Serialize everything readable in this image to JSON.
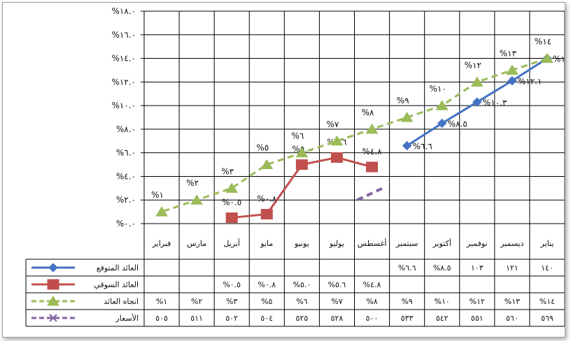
{
  "chart_data": {
    "type": "line",
    "categories": [
      "يناير",
      "ديسمبر",
      "نوفمبر",
      "أكتوبر",
      "سبتمبر",
      "أغسطس",
      "يوليو",
      "يونيو",
      "مايو",
      "أبريل",
      "مارس",
      "فبراير"
    ],
    "category_labels": [
      "يناير",
      "ديسمبر",
      "نوفمبر",
      "أكتوبر",
      "سبتمبر",
      "أغسطس",
      "يوليو",
      "يونيو",
      "مايو",
      "أبريل",
      "مارس",
      "فبراير"
    ],
    "ylim": [
      0,
      18
    ],
    "y_ticks": [
      0,
      2,
      4,
      6,
      8,
      10,
      12,
      14,
      16,
      18
    ],
    "y_tick_labels": [
      "%٠.٠",
      "%٢.٠",
      "%٤.٠",
      "%٦.٠",
      "%٨.٠",
      "%١٠.٠",
      "%١٢.٠",
      "%١٤.٠",
      "%١٦.٠",
      "%١٨.٠"
    ],
    "x_direction": "right-to-left",
    "grid": true,
    "legend_placement": "data-table",
    "series": [
      {
        "name": "العائد المتوقع",
        "color": "#4472c4",
        "marker": "diamond",
        "line": "solid",
        "values": [
          14.0,
          12.1,
          10.3,
          8.5,
          6.6,
          null,
          null,
          null,
          null,
          null,
          null,
          null
        ],
        "labels": [
          "%١٤.٠",
          "%١٢.١",
          "%١٠.٣",
          "%٨.٥",
          "%٦.٦",
          "",
          "",
          "",
          "",
          "",
          "",
          ""
        ],
        "table_values": [
          "١٤٠",
          "١٢١",
          "١٠٣",
          "%٨.٥",
          "%٦.٦",
          "",
          "",
          "",
          "",
          "",
          "",
          ""
        ]
      },
      {
        "name": "العائد السوقي",
        "color": "#c0504d",
        "marker": "square",
        "line": "solid",
        "values": [
          null,
          null,
          null,
          null,
          null,
          4.8,
          5.6,
          5.0,
          0.8,
          0.5,
          null,
          null
        ],
        "labels": [
          "",
          "",
          "",
          "",
          "",
          "%٤.٨",
          "%٥.٦",
          "%٥.٠",
          "%٠.٨",
          "%٠.٥",
          "",
          ""
        ],
        "table_values": [
          "",
          "",
          "",
          "",
          "",
          "%٤.٨",
          "%٥.٦",
          "%٥.٠",
          "%٠.٨",
          "%٠.٥",
          "",
          ""
        ]
      },
      {
        "name": "اتجاه العائد",
        "color": "#9bbb59",
        "marker": "triangle",
        "line": "dashed",
        "values": [
          14,
          13,
          12,
          10,
          9,
          8,
          7,
          6,
          5,
          3,
          2,
          1
        ],
        "labels": [
          "%١٤",
          "%١٣",
          "%١٢",
          "%١٠",
          "%٩",
          "%٨",
          "%٧",
          "%٦",
          "%٥",
          "%٣",
          "%٢",
          "%١"
        ],
        "table_values": [
          "%١٤",
          "%١٣",
          "%١٢",
          "%١٠",
          "%٩",
          "%٨",
          "%٧",
          "%٦",
          "%٥",
          "%٣",
          "%٢",
          "%١"
        ]
      },
      {
        "name": "الأسعار",
        "color": "#8064a2",
        "marker": "x",
        "line": "dashed",
        "values": [
          null,
          null,
          null,
          null,
          null,
          null,
          null,
          null,
          null,
          null,
          null,
          null
        ],
        "labels": [
          "",
          "",
          "",
          "",
          "",
          "",
          "",
          "",
          "",
          "",
          "",
          ""
        ],
        "table_values": [
          "٥٦٩",
          "٥٦٠",
          "٥٥١",
          "٥٤٢",
          "٥٣٣",
          "٥٠٠",
          "٥٢٨",
          "٥٢٥",
          "٥٠٤",
          "٥٠٢",
          "٥١١",
          "٥٠٥"
        ]
      }
    ]
  }
}
